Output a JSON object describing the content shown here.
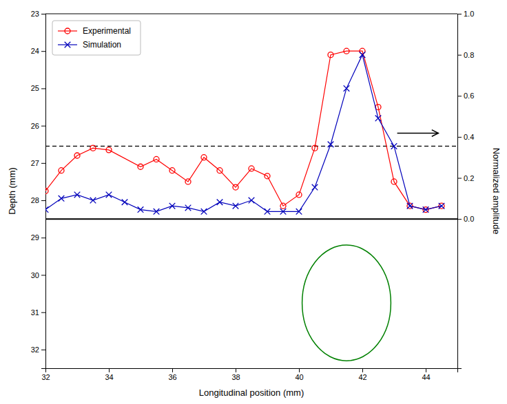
{
  "chart_data": {
    "type": "line",
    "x_label": "Longitudinal position (mm)",
    "y_label": "Depth (mm)",
    "y2_label": "Normalized amplitude",
    "xlim": [
      32,
      45
    ],
    "xticks": [
      32,
      34,
      36,
      38,
      40,
      42,
      44
    ],
    "ylim": [
      32.5,
      23
    ],
    "yticks": [
      23,
      24,
      25,
      26,
      27,
      28,
      29,
      30,
      31,
      32
    ],
    "y2lim": [
      -0.7272727272727273,
      1.0
    ],
    "y2ticks": [
      {
        "value": 0,
        "label": "0.0"
      },
      0.2,
      0.4,
      0.6,
      0.8,
      {
        "value": 1,
        "label": "1.0"
      }
    ],
    "grid": false,
    "legend": "upper left",
    "series": [
      {
        "name": "Experimental",
        "color": "#ff0000",
        "marker": "circle",
        "line_style": "solid",
        "x": [
          32,
          32.5,
          33,
          33.5,
          34,
          35,
          35.5,
          36,
          36.5,
          37,
          37.5,
          38,
          38.5,
          39,
          39.5,
          40,
          40.5,
          41,
          41.5,
          42,
          42.5,
          43,
          43.5,
          44,
          44.5
        ],
        "values": [
          27.75,
          27.2,
          26.8,
          26.6,
          26.65,
          27.1,
          26.9,
          27.2,
          27.5,
          26.85,
          27.2,
          27.65,
          27.15,
          27.35,
          28.15,
          27.85,
          26.6,
          24.1,
          24.0,
          24.0,
          25.5,
          27.5,
          28.15,
          28.25,
          28.15
        ]
      },
      {
        "name": "Simulation",
        "color": "#0000bb",
        "marker": "x",
        "line_style": "solid",
        "x": [
          32,
          32.5,
          33,
          33.5,
          34,
          34.5,
          35,
          35.5,
          36,
          36.5,
          37,
          37.5,
          38,
          38.5,
          39,
          39.5,
          40,
          40.5,
          41,
          41.5,
          42,
          42.5,
          43,
          43.5,
          44,
          44.5
        ],
        "values": [
          28.25,
          27.95,
          27.85,
          28.0,
          27.85,
          28.05,
          28.25,
          28.3,
          28.15,
          28.2,
          28.3,
          28.05,
          28.15,
          28.0,
          28.3,
          28.3,
          28.3,
          27.65,
          26.5,
          25.0,
          24.1,
          25.8,
          26.55,
          28.15,
          28.25,
          28.15
        ]
      }
    ],
    "hlines": [
      {
        "y": 26.55,
        "color": "black",
        "line_style": "dashed"
      },
      {
        "y": 28.5,
        "color": "black",
        "line_style": "solid"
      }
    ],
    "ellipse": {
      "x": 41.5,
      "y": 30.75,
      "rx": 1.4,
      "ry": 1.55,
      "color": "green"
    },
    "arrow": {
      "x_start": 43.1,
      "x_end": 44.4,
      "y": 26.2,
      "color": "black"
    }
  }
}
